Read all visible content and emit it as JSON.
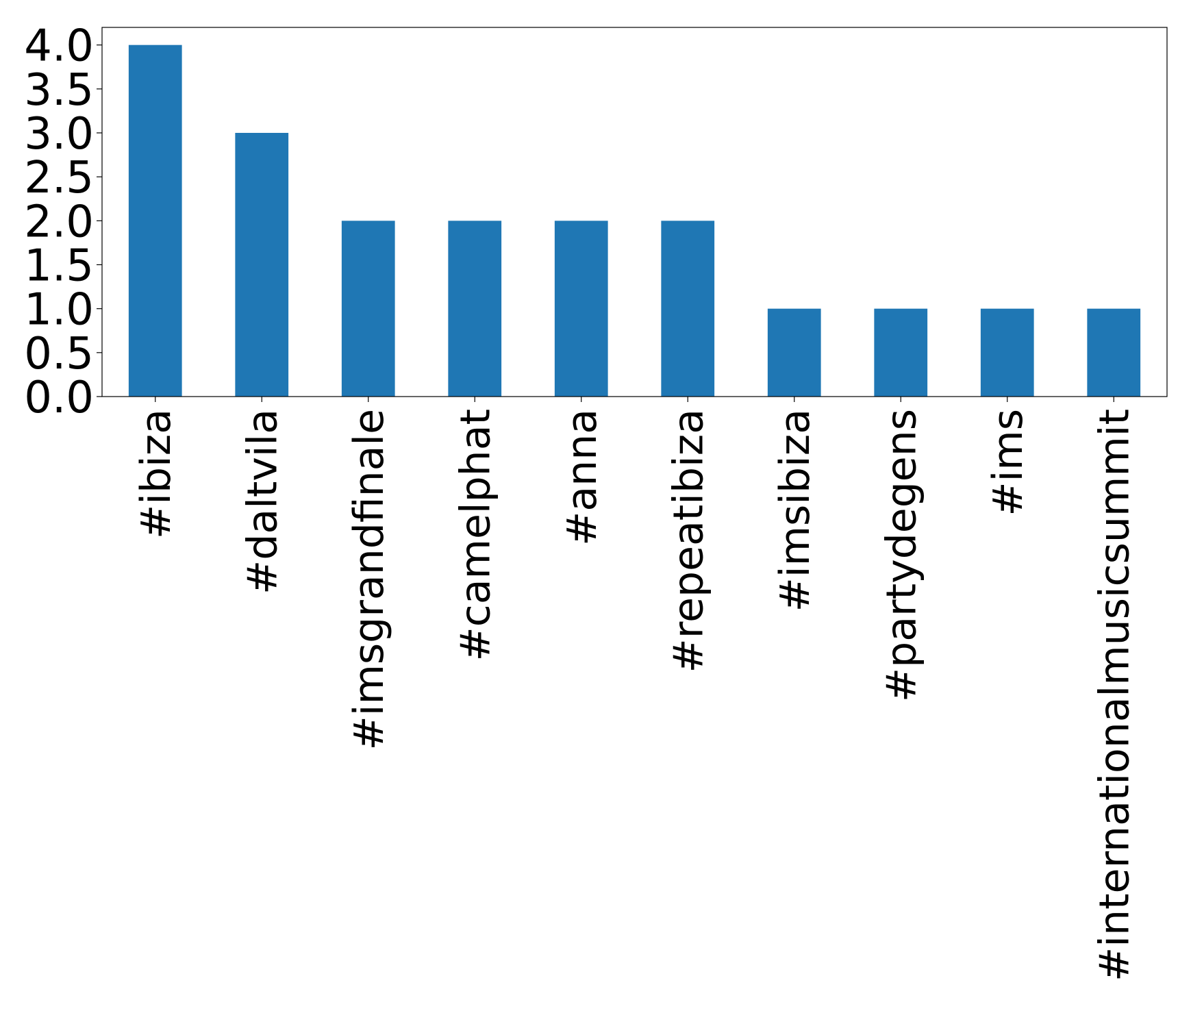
{
  "chart_data": {
    "type": "bar",
    "categories": [
      "#ibiza",
      "#daltvila",
      "#imsgrandfinale",
      "#camelphat",
      "#anna",
      "#repeatibiza",
      "#imsibiza",
      "#partydegens",
      "#ims",
      "#internationalmusicsummit"
    ],
    "values": [
      4,
      3,
      2,
      2,
      2,
      2,
      1,
      1,
      1,
      1
    ],
    "color": "#1f77b4",
    "ylim": [
      0,
      4.2
    ],
    "yticks": [
      {
        "value": 0,
        "label": "0.0"
      },
      0.5,
      {
        "value": 1,
        "label": "1.0"
      },
      1.5,
      {
        "value": 2,
        "label": "2.0"
      },
      2.5,
      {
        "value": 3,
        "label": "3.0"
      },
      3.5,
      {
        "value": 4,
        "label": "4.0"
      }
    ],
    "grid": false
  }
}
